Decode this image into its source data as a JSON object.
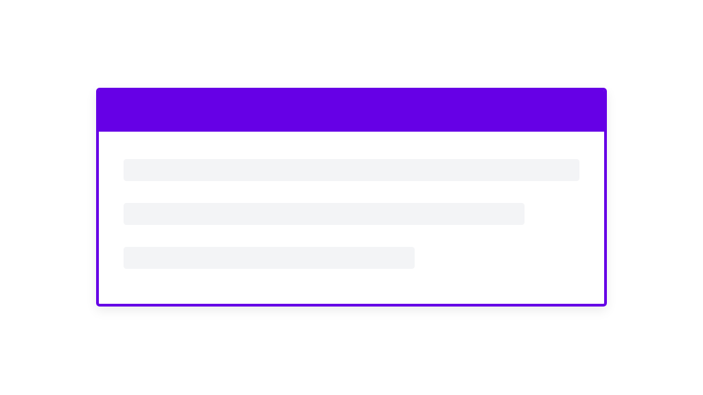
{
  "card": {
    "accent_color": "#6600e6",
    "placeholder_color": "#f3f4f6",
    "skeleton_lines": 3
  }
}
